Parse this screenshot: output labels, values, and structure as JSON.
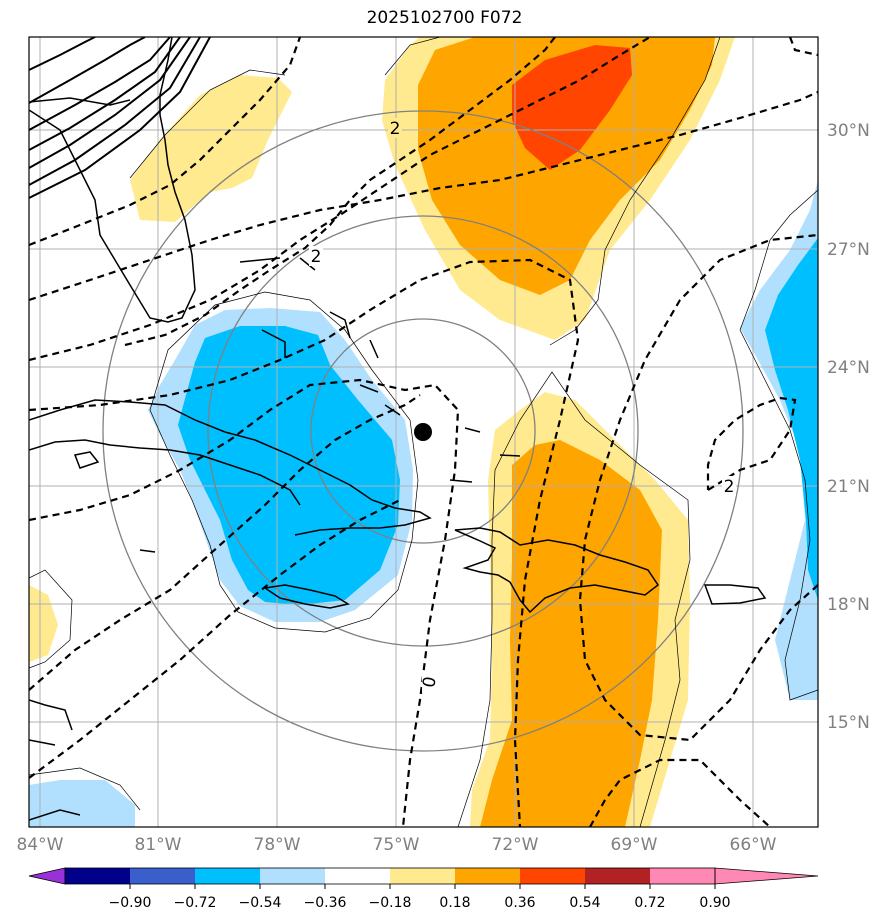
{
  "title": "2025102700 F072",
  "axes": {
    "lon_labels": [
      "84°W",
      "81°W",
      "78°W",
      "75°W",
      "72°W",
      "69°W",
      "66°W"
    ],
    "lat_labels": [
      "30°N",
      "27°N",
      "24°N",
      "21°N",
      "18°N",
      "15°N"
    ]
  },
  "contour_labels": [
    "2",
    "2",
    "2",
    "0"
  ],
  "colorbar": {
    "ticks": [
      "−0.90",
      "−0.72",
      "−0.54",
      "−0.36",
      "−0.18",
      "0.18",
      "0.36",
      "0.54",
      "0.72",
      "0.90"
    ],
    "colors": [
      "#9a30d8",
      "#00008b",
      "#3a5fcd",
      "#00bfff",
      "#b0e0fe",
      "#ffffff",
      "#ffea90",
      "#ffa500",
      "#ff4500",
      "#b22222",
      "#ff88b4"
    ]
  },
  "marker": {
    "name": "storm-center",
    "lon": -74.3,
    "lat": 22.3
  }
}
